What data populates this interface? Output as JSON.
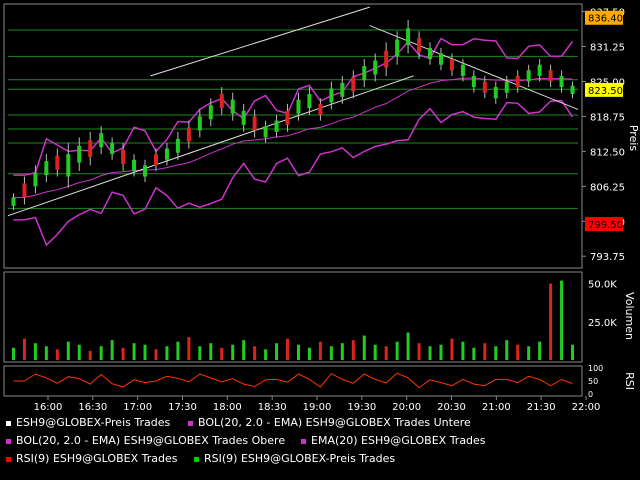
{
  "chart_data": {
    "type": "candlestick",
    "symbol": "ESH9@GLOBEX",
    "price_panel": {
      "ylabel": "Preis",
      "yticks": [
        793.75,
        800.0,
        806.25,
        812.5,
        818.75,
        825.0,
        831.25,
        837.5
      ],
      "ylim": [
        792.0,
        838.5
      ],
      "price_badges": [
        {
          "label": "836.40",
          "value": 836.4,
          "color": "#ffaa00"
        },
        {
          "label": "823.50",
          "value": 823.5,
          "color": "#ffff00"
        },
        {
          "label": "799.50",
          "value": 799.5,
          "color": "#ff0000"
        }
      ],
      "horizontal_levels": [
        834.2,
        829.5,
        825.3,
        823.6,
        819.0,
        816.5,
        814.0,
        808.5,
        802.3
      ],
      "candles_approx": [
        [
          802,
          805
        ],
        [
          803,
          808
        ],
        [
          805,
          810
        ],
        [
          807,
          812
        ],
        [
          808,
          813
        ],
        [
          806,
          814
        ],
        [
          809,
          815
        ],
        [
          810,
          816
        ],
        [
          812,
          817
        ],
        [
          811,
          815
        ],
        [
          809,
          814
        ],
        [
          808,
          812
        ],
        [
          807,
          811
        ],
        [
          809,
          813
        ],
        [
          810,
          814
        ],
        [
          811,
          816
        ],
        [
          813,
          818
        ],
        [
          815,
          820
        ],
        [
          817,
          822
        ],
        [
          819,
          824
        ],
        [
          818,
          823
        ],
        [
          816,
          821
        ],
        [
          815,
          820
        ],
        [
          814,
          818
        ],
        [
          815,
          819
        ],
        [
          816,
          821
        ],
        [
          818,
          823
        ],
        [
          819,
          824
        ],
        [
          818,
          822
        ],
        [
          820,
          825
        ],
        [
          821,
          826
        ],
        [
          822,
          827
        ],
        [
          824,
          829
        ],
        [
          825,
          830
        ],
        [
          826,
          832
        ],
        [
          828,
          834
        ],
        [
          830,
          836
        ],
        [
          829,
          834
        ],
        [
          828,
          832
        ],
        [
          827,
          831
        ],
        [
          826,
          830
        ],
        [
          825,
          829
        ],
        [
          823,
          827
        ],
        [
          822,
          826
        ],
        [
          821,
          825
        ],
        [
          822,
          826
        ],
        [
          823,
          827
        ],
        [
          824,
          828
        ],
        [
          825,
          829
        ],
        [
          824,
          828
        ],
        [
          823,
          827
        ],
        [
          822,
          825
        ]
      ]
    },
    "volume_panel": {
      "ylabel": "Volumen",
      "yticks": [
        "50.0K",
        "25.0K"
      ],
      "ylim": [
        0,
        55000
      ],
      "volumes_approx": [
        8000,
        14000,
        11000,
        9000,
        7000,
        12000,
        10000,
        6000,
        9000,
        13000,
        8000,
        11000,
        10000,
        7000,
        9000,
        12000,
        15000,
        9000,
        11000,
        8000,
        10000,
        13000,
        9000,
        7000,
        11000,
        14000,
        10000,
        8000,
        12000,
        9000,
        11000,
        13000,
        16000,
        10000,
        9000,
        12000,
        18000,
        11000,
        9000,
        10000,
        14000,
        12000,
        8000,
        11000,
        9000,
        13000,
        10000,
        9000,
        12000,
        50000,
        52000,
        10000
      ]
    },
    "rsi_panel": {
      "ylabel": "RSI",
      "yticks": [
        "100",
        "50",
        "0"
      ],
      "ylim": [
        0,
        100
      ]
    },
    "time_axis": {
      "ticks": [
        "16:00",
        "16:30",
        "17:00",
        "17:30",
        "18:00",
        "18:30",
        "19:00",
        "19:30",
        "20:00",
        "20:30",
        "21:00",
        "21:30",
        "22:00"
      ]
    },
    "legend": [
      {
        "label": "ESH9@GLOBEX-Preis Trades",
        "color": "#ffffff"
      },
      {
        "label": "BOL(20, 2.0 - EMA) ESH9@GLOBEX Trades Untere",
        "color": "#cc33cc"
      },
      {
        "label": "BOL(20, 2.0 - EMA) ESH9@GLOBEX Trades Obere",
        "color": "#cc33cc"
      },
      {
        "label": "EMA(20) ESH9@GLOBEX Trades",
        "color": "#cc33cc"
      },
      {
        "label": "RSI(9) ESH9@GLOBEX Trades",
        "color": "#ff0000"
      },
      {
        "label": "RSI(9) ESH9@GLOBEX-Preis Trades",
        "color": "#00cc00"
      }
    ]
  }
}
